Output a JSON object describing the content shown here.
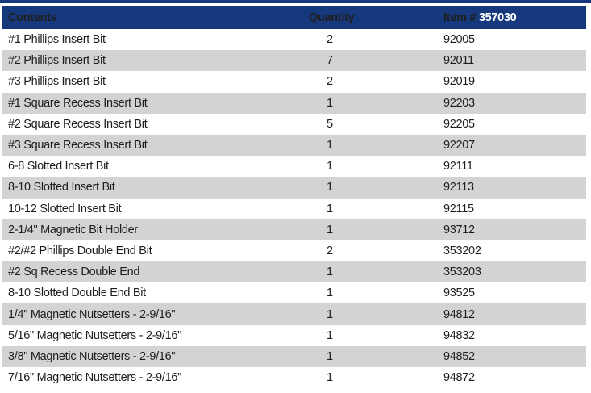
{
  "colors": {
    "header_bg": "#16397d",
    "header_accent": "#f2b51c",
    "header_item_number_text": "#ffffff",
    "row_alt_bg": "#d3d3d5",
    "row_text": "#1e1e1e"
  },
  "table": {
    "header": {
      "contents_label": "Contents",
      "quantity_label": "Quantity",
      "item_label": "Item #",
      "item_number": "357030"
    },
    "rows": [
      {
        "contents": "#1 Phillips Insert Bit",
        "quantity": "2",
        "item": "92005"
      },
      {
        "contents": "#2 Phillips Insert Bit",
        "quantity": "7",
        "item": "92011"
      },
      {
        "contents": "#3 Phillips Insert Bit",
        "quantity": "2",
        "item": "92019"
      },
      {
        "contents": "#1 Square Recess Insert Bit",
        "quantity": "1",
        "item": "92203"
      },
      {
        "contents": "#2 Square Recess Insert Bit",
        "quantity": "5",
        "item": "92205"
      },
      {
        "contents": "#3 Square Recess Insert Bit",
        "quantity": "1",
        "item": "92207"
      },
      {
        "contents": "6-8 Slotted Insert Bit",
        "quantity": "1",
        "item": "92111"
      },
      {
        "contents": "8-10 Slotted Insert Bit",
        "quantity": "1",
        "item": "92113"
      },
      {
        "contents": "10-12 Slotted Insert Bit",
        "quantity": "1",
        "item": "92115"
      },
      {
        "contents": "2-1/4\" Magnetic Bit Holder",
        "quantity": "1",
        "item": "93712"
      },
      {
        "contents": "#2/#2 Phillips Double End Bit",
        "quantity": "2",
        "item": "353202"
      },
      {
        "contents": "#2 Sq Recess Double End",
        "quantity": "1",
        "item": "353203"
      },
      {
        "contents": "8-10 Slotted Double End Bit",
        "quantity": "1",
        "item": "93525"
      },
      {
        "contents": "1/4\" Magnetic Nutsetters - 2-9/16\"",
        "quantity": "1",
        "item": "94812"
      },
      {
        "contents": "5/16\" Magnetic Nutsetters - 2-9/16\"",
        "quantity": "1",
        "item": "94832"
      },
      {
        "contents": "3/8\" Magnetic Nutsetters - 2-9/16\"",
        "quantity": "1",
        "item": "94852"
      },
      {
        "contents": "7/16\" Magnetic Nutsetters - 2-9/16\"",
        "quantity": "1",
        "item": "94872"
      }
    ]
  }
}
